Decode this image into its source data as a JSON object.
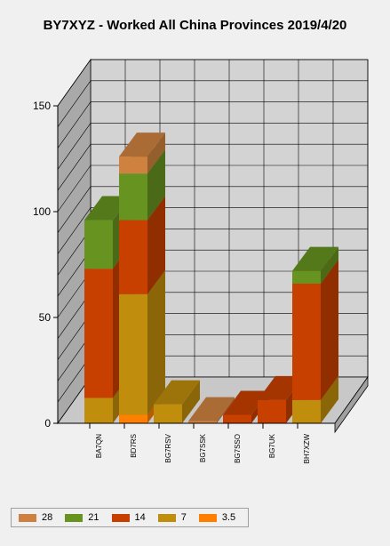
{
  "chart_data": {
    "type": "bar",
    "stacked": true,
    "view": "3d",
    "title": "BY7XYZ - Worked All China Provinces 2019/4/20",
    "categories": [
      "BA7QN",
      "BD7RS",
      "BG7RSV",
      "BG7SSK",
      "BG7SSO",
      "BG7UK",
      "BH7XZW"
    ],
    "series": [
      {
        "name": "3.5",
        "color": "#ff8000",
        "values": [
          0,
          4,
          0,
          0,
          0,
          0,
          0
        ]
      },
      {
        "name": "7",
        "color": "#c08d0c",
        "values": [
          12,
          57,
          9,
          0,
          0,
          0,
          11
        ]
      },
      {
        "name": "14",
        "color": "#c84000",
        "values": [
          61,
          35,
          0,
          0,
          4,
          11,
          55
        ]
      },
      {
        "name": "21",
        "color": "#679321",
        "values": [
          23,
          22,
          0,
          0,
          0,
          0,
          6
        ]
      },
      {
        "name": "28",
        "color": "#cf823f",
        "values": [
          0,
          8,
          0,
          1,
          0,
          0,
          0
        ]
      }
    ],
    "yticks": [
      0,
      50,
      100,
      150
    ],
    "ylim": [
      0,
      150
    ],
    "grid": true,
    "legend_position": "bottom-left"
  }
}
